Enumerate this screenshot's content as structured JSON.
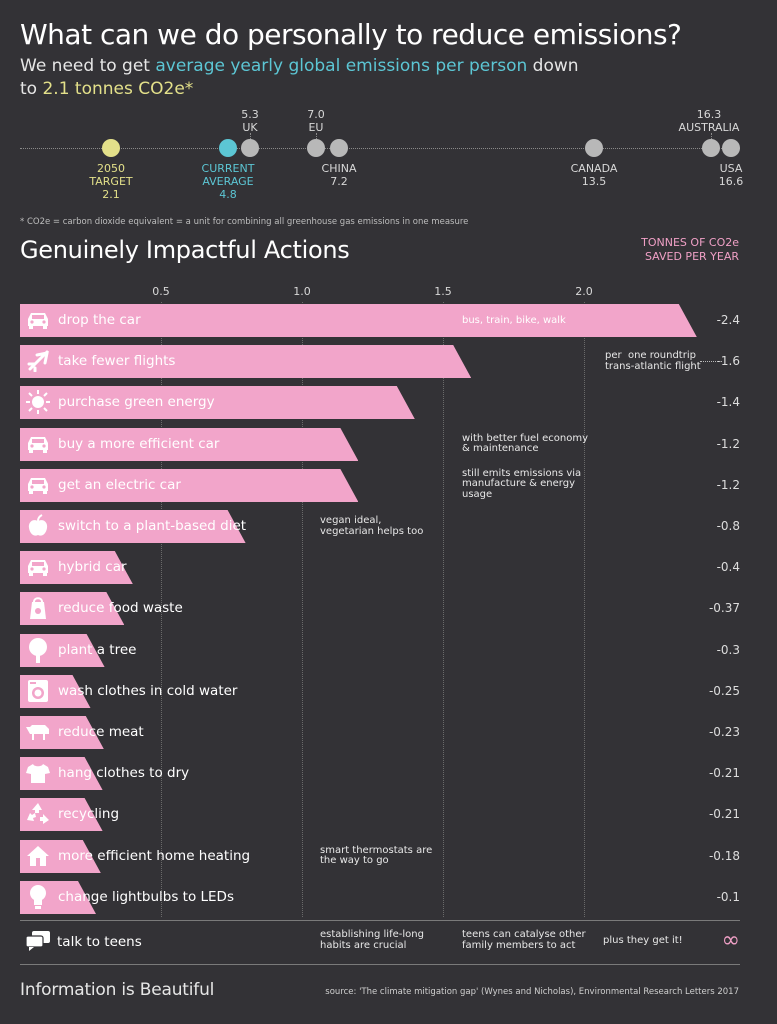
{
  "header": {
    "title": "What can we do personally to reduce emissions?",
    "subtitle_pre": "We need to get ",
    "subtitle_highlight": "average yearly global emissions per person",
    "subtitle_post": " down",
    "target_pre": "to ",
    "target_highlight": "2.1 tonnes CO2e*"
  },
  "emissions_scale": [
    {
      "label": "2050\nTARGET",
      "value": "2.1",
      "color": "#e3e08a",
      "side": "below"
    },
    {
      "label": "CURRENT\nAVERAGE",
      "value": "4.8",
      "color": "#5cc6d4",
      "side": "below"
    },
    {
      "label": "UK",
      "value": "5.3",
      "color": "#b8b8b8",
      "side": "above"
    },
    {
      "label": "EU",
      "value": "7.0",
      "color": "#b8b8b8",
      "side": "above"
    },
    {
      "label": "CHINA",
      "value": "7.2",
      "color": "#b8b8b8",
      "side": "below"
    },
    {
      "label": "CANADA",
      "value": "13.5",
      "color": "#b8b8b8",
      "side": "below"
    },
    {
      "label": "AUSTRALIA",
      "value": "16.3",
      "color": "#b8b8b8",
      "side": "above"
    },
    {
      "label": "USA",
      "value": "16.6",
      "color": "#b8b8b8",
      "side": "below"
    }
  ],
  "footnote": "* CO2e = carbon dioxide equivalent = a unit for combining all greenhouse gas emissions in one measure",
  "section_title": "Genuinely Impactful Actions",
  "unit_label_1": "TONNES OF CO2e",
  "unit_label_2": "SAVED PER YEAR",
  "colors": {
    "bar": "#f2a5ca",
    "unit": "#f0a0c6",
    "background": "#333236"
  },
  "chart_data": {
    "type": "bar",
    "orientation": "horizontal",
    "xlim": [
      0,
      2.4
    ],
    "ticks": [
      "0.5",
      "1.0",
      "1.5",
      "2.0"
    ],
    "tick_values": [
      0.5,
      1.0,
      1.5,
      2.0
    ],
    "categories": [
      "drop the car",
      "take fewer flights",
      "purchase green energy",
      "buy a more efficient car",
      "get an electric car",
      "switch to a plant-based diet",
      "hybrid car",
      "reduce food waste",
      "plant a tree",
      "wash clothes in cold water",
      "reduce meat",
      "hang clothes to dry",
      "recycling",
      "more efficient home heating",
      "change lightbulbs to LEDs"
    ],
    "values": [
      2.4,
      1.6,
      1.4,
      1.2,
      1.2,
      0.8,
      0.4,
      0.37,
      0.3,
      0.25,
      0.23,
      0.21,
      0.21,
      0.18,
      0.1
    ],
    "value_labels": [
      "-2.4",
      "-1.6",
      "-1.4",
      "-1.2",
      "-1.2",
      "-0.8",
      "-0.4",
      "-0.37",
      "-0.3",
      "-0.25",
      "-0.23",
      "-0.21",
      "-0.21",
      "-0.18",
      "-0.1"
    ],
    "icons": [
      "car-icon",
      "plane-icon",
      "sun-icon",
      "car-icon",
      "car-icon",
      "apple-icon",
      "car-icon",
      "food-bag-icon",
      "tree-icon",
      "washing-machine-icon",
      "cow-icon",
      "shirt-icon",
      "recycle-icon",
      "house-icon",
      "lightbulb-icon"
    ],
    "annotations": [
      {
        "row": 0,
        "text": "bus, train, bike, walk",
        "column": 2
      },
      {
        "row": 1,
        "text": "per  one roundtrip\ntrans-atlantic flight",
        "column": 3
      },
      {
        "row": 3,
        "text": "with better fuel economy\n& maintenance",
        "column": 2
      },
      {
        "row": 4,
        "text": "still emits emissions via\nmanufacture & energy\nusage",
        "column": 2
      },
      {
        "row": 5,
        "text": "vegan ideal,\nvegetarian helps too",
        "column": 1
      },
      {
        "row": 13,
        "text": "smart thermostats are\nthe way to go",
        "column": 1
      }
    ]
  },
  "teens": {
    "label": "talk to teens",
    "icon": "speech-bubbles-icon",
    "notes": [
      "establishing life-long\nhabits are crucial",
      "teens can catalyse other\nfamily members to act",
      "plus they get it!"
    ],
    "value": "∞"
  },
  "footer": {
    "brand": "Information is Beautiful",
    "source": "source: 'The climate mitigation gap' (Wynes and Nicholas), Environmental Research Letters 2017"
  }
}
